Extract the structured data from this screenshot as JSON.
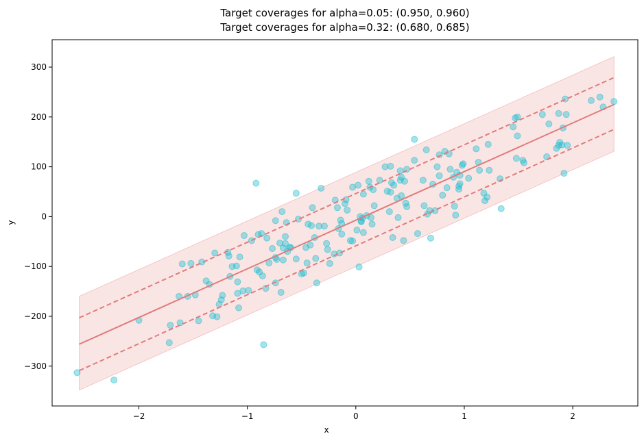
{
  "chart_data": {
    "type": "scatter",
    "title_lines": [
      "Target coverages for alpha=0.05: (0.950, 0.960)",
      "Target coverages for alpha=0.32: (0.680, 0.685)"
    ],
    "xlabel": "x",
    "ylabel": "y",
    "xlim": [
      -2.8,
      2.6
    ],
    "ylim": [
      -380,
      355
    ],
    "xticks": [
      -2,
      -1,
      0,
      1,
      2
    ],
    "xtick_labels": [
      "−2",
      "−1",
      "0",
      "1",
      "2"
    ],
    "yticks": [
      -300,
      -200,
      -100,
      0,
      100,
      200,
      300
    ],
    "ytick_labels": [
      "−300",
      "−200",
      "−100",
      "0",
      "100",
      "200",
      "300"
    ],
    "grid": false,
    "legend": "none",
    "colors": {
      "points": "#17becf",
      "prediction_line": "#e07b7b",
      "band_fill": "#f4c6c6"
    },
    "prediction": {
      "x": [
        -2.55,
        2.38
      ],
      "y": [
        -256,
        225
      ]
    },
    "interval_alpha_0_32": {
      "x": [
        -2.55,
        2.38
      ],
      "lower": [
        -309,
        175
      ],
      "upper": [
        -203,
        279
      ]
    },
    "interval_alpha_0_05": {
      "x": [
        -2.55,
        2.38
      ],
      "lower": [
        -348,
        131
      ],
      "upper": [
        -160,
        321
      ]
    },
    "points": [
      {
        "x": -2.57,
        "y": -313
      },
      {
        "x": -2.23,
        "y": -328
      },
      {
        "x": -2.0,
        "y": -208
      },
      {
        "x": -1.72,
        "y": -253
      },
      {
        "x": -1.71,
        "y": -218
      },
      {
        "x": -1.63,
        "y": -160
      },
      {
        "x": -1.62,
        "y": -213
      },
      {
        "x": -1.6,
        "y": -95
      },
      {
        "x": -1.55,
        "y": -160
      },
      {
        "x": -1.52,
        "y": -94
      },
      {
        "x": -1.48,
        "y": -157
      },
      {
        "x": -1.45,
        "y": -209
      },
      {
        "x": -1.42,
        "y": -91
      },
      {
        "x": -1.38,
        "y": -129
      },
      {
        "x": -1.35,
        "y": -136
      },
      {
        "x": -1.32,
        "y": -199
      },
      {
        "x": -1.3,
        "y": -73
      },
      {
        "x": -1.28,
        "y": -201
      },
      {
        "x": -1.26,
        "y": -176
      },
      {
        "x": -1.24,
        "y": -167
      },
      {
        "x": -1.23,
        "y": -158
      },
      {
        "x": -1.18,
        "y": -72
      },
      {
        "x": -1.17,
        "y": -79
      },
      {
        "x": -1.16,
        "y": -120
      },
      {
        "x": -1.14,
        "y": -100
      },
      {
        "x": -1.1,
        "y": -99
      },
      {
        "x": -1.09,
        "y": -154
      },
      {
        "x": -1.09,
        "y": -131
      },
      {
        "x": -1.08,
        "y": -183
      },
      {
        "x": -1.07,
        "y": -81
      },
      {
        "x": -1.04,
        "y": -149
      },
      {
        "x": -1.03,
        "y": -38
      },
      {
        "x": -0.99,
        "y": -148
      },
      {
        "x": -0.96,
        "y": -48
      },
      {
        "x": -0.92,
        "y": 67
      },
      {
        "x": -0.91,
        "y": -107
      },
      {
        "x": -0.9,
        "y": -36
      },
      {
        "x": -0.89,
        "y": -111
      },
      {
        "x": -0.87,
        "y": -34
      },
      {
        "x": -0.86,
        "y": -119
      },
      {
        "x": -0.85,
        "y": -257
      },
      {
        "x": -0.83,
        "y": -144
      },
      {
        "x": -0.82,
        "y": -43
      },
      {
        "x": -0.8,
        "y": -93
      },
      {
        "x": -0.77,
        "y": -64
      },
      {
        "x": -0.74,
        "y": -8
      },
      {
        "x": -0.74,
        "y": -133
      },
      {
        "x": -0.74,
        "y": -82
      },
      {
        "x": -0.73,
        "y": -86
      },
      {
        "x": -0.7,
        "y": -53
      },
      {
        "x": -0.69,
        "y": -152
      },
      {
        "x": -0.68,
        "y": 10
      },
      {
        "x": -0.67,
        "y": -63
      },
      {
        "x": -0.67,
        "y": -87
      },
      {
        "x": -0.65,
        "y": -40
      },
      {
        "x": -0.65,
        "y": -54
      },
      {
        "x": -0.64,
        "y": -12
      },
      {
        "x": -0.63,
        "y": -70
      },
      {
        "x": -0.61,
        "y": -62
      },
      {
        "x": -0.6,
        "y": -62
      },
      {
        "x": -0.55,
        "y": 47
      },
      {
        "x": -0.55,
        "y": -85
      },
      {
        "x": -0.53,
        "y": -5
      },
      {
        "x": -0.5,
        "y": -115
      },
      {
        "x": -0.48,
        "y": -113
      },
      {
        "x": -0.46,
        "y": -62
      },
      {
        "x": -0.45,
        "y": -93
      },
      {
        "x": -0.44,
        "y": -15
      },
      {
        "x": -0.42,
        "y": -57
      },
      {
        "x": -0.41,
        "y": -18
      },
      {
        "x": -0.4,
        "y": 18
      },
      {
        "x": -0.38,
        "y": -42
      },
      {
        "x": -0.37,
        "y": -84
      },
      {
        "x": -0.36,
        "y": -133
      },
      {
        "x": -0.34,
        "y": -19
      },
      {
        "x": -0.32,
        "y": 57
      },
      {
        "x": -0.29,
        "y": -19
      },
      {
        "x": -0.27,
        "y": -54
      },
      {
        "x": -0.26,
        "y": -66
      },
      {
        "x": -0.24,
        "y": -94
      },
      {
        "x": -0.2,
        "y": -75
      },
      {
        "x": -0.19,
        "y": 33
      },
      {
        "x": -0.17,
        "y": 18
      },
      {
        "x": -0.16,
        "y": -24
      },
      {
        "x": -0.15,
        "y": -73
      },
      {
        "x": -0.14,
        "y": -7
      },
      {
        "x": -0.13,
        "y": -14
      },
      {
        "x": -0.13,
        "y": -35
      },
      {
        "x": -0.1,
        "y": 26
      },
      {
        "x": -0.09,
        "y": 34
      },
      {
        "x": -0.08,
        "y": 13
      },
      {
        "x": -0.05,
        "y": -48
      },
      {
        "x": -0.03,
        "y": -49
      },
      {
        "x": -0.03,
        "y": 59
      },
      {
        "x": 0.01,
        "y": -27
      },
      {
        "x": 0.02,
        "y": 63
      },
      {
        "x": 0.03,
        "y": -101
      },
      {
        "x": 0.04,
        "y": 0
      },
      {
        "x": 0.05,
        "y": -9
      },
      {
        "x": 0.05,
        "y": -10
      },
      {
        "x": 0.06,
        "y": -3
      },
      {
        "x": 0.07,
        "y": 45
      },
      {
        "x": 0.07,
        "y": -32
      },
      {
        "x": 0.1,
        "y": 2
      },
      {
        "x": 0.12,
        "y": 71
      },
      {
        "x": 0.13,
        "y": 59
      },
      {
        "x": 0.14,
        "y": -2
      },
      {
        "x": 0.15,
        "y": -15
      },
      {
        "x": 0.16,
        "y": 54
      },
      {
        "x": 0.17,
        "y": 22
      },
      {
        "x": 0.22,
        "y": 73
      },
      {
        "x": 0.27,
        "y": 100
      },
      {
        "x": 0.29,
        "y": 51
      },
      {
        "x": 0.31,
        "y": 10
      },
      {
        "x": 0.32,
        "y": 49
      },
      {
        "x": 0.32,
        "y": 101
      },
      {
        "x": 0.33,
        "y": 68
      },
      {
        "x": 0.34,
        "y": -42
      },
      {
        "x": 0.35,
        "y": 63
      },
      {
        "x": 0.38,
        "y": 37
      },
      {
        "x": 0.39,
        "y": -2
      },
      {
        "x": 0.41,
        "y": 92
      },
      {
        "x": 0.41,
        "y": 73
      },
      {
        "x": 0.42,
        "y": 42
      },
      {
        "x": 0.42,
        "y": 79
      },
      {
        "x": 0.44,
        "y": -48
      },
      {
        "x": 0.45,
        "y": 71
      },
      {
        "x": 0.46,
        "y": 27
      },
      {
        "x": 0.47,
        "y": 20
      },
      {
        "x": 0.47,
        "y": 95
      },
      {
        "x": 0.54,
        "y": 113
      },
      {
        "x": 0.54,
        "y": 155
      },
      {
        "x": 0.57,
        "y": -34
      },
      {
        "x": 0.62,
        "y": 73
      },
      {
        "x": 0.63,
        "y": 22
      },
      {
        "x": 0.65,
        "y": 134
      },
      {
        "x": 0.66,
        "y": 5
      },
      {
        "x": 0.68,
        "y": 12
      },
      {
        "x": 0.69,
        "y": -43
      },
      {
        "x": 0.71,
        "y": 65
      },
      {
        "x": 0.73,
        "y": 12
      },
      {
        "x": 0.75,
        "y": 100
      },
      {
        "x": 0.77,
        "y": 124
      },
      {
        "x": 0.77,
        "y": 82
      },
      {
        "x": 0.8,
        "y": 43
      },
      {
        "x": 0.82,
        "y": 131
      },
      {
        "x": 0.84,
        "y": 58
      },
      {
        "x": 0.86,
        "y": 126
      },
      {
        "x": 0.87,
        "y": 95
      },
      {
        "x": 0.9,
        "y": 79
      },
      {
        "x": 0.91,
        "y": 21
      },
      {
        "x": 0.92,
        "y": 3
      },
      {
        "x": 0.93,
        "y": 89
      },
      {
        "x": 0.95,
        "y": 55
      },
      {
        "x": 0.95,
        "y": 61
      },
      {
        "x": 0.96,
        "y": 83
      },
      {
        "x": 0.96,
        "y": 66
      },
      {
        "x": 0.98,
        "y": 103
      },
      {
        "x": 0.99,
        "y": 106
      },
      {
        "x": 1.04,
        "y": 77
      },
      {
        "x": 1.11,
        "y": 136
      },
      {
        "x": 1.13,
        "y": 109
      },
      {
        "x": 1.14,
        "y": 93
      },
      {
        "x": 1.18,
        "y": 47
      },
      {
        "x": 1.19,
        "y": 32
      },
      {
        "x": 1.21,
        "y": 39
      },
      {
        "x": 1.22,
        "y": 145
      },
      {
        "x": 1.23,
        "y": 93
      },
      {
        "x": 1.33,
        "y": 76
      },
      {
        "x": 1.34,
        "y": 16
      },
      {
        "x": 1.45,
        "y": 180
      },
      {
        "x": 1.47,
        "y": 198
      },
      {
        "x": 1.48,
        "y": 117
      },
      {
        "x": 1.49,
        "y": 200
      },
      {
        "x": 1.49,
        "y": 162
      },
      {
        "x": 1.54,
        "y": 113
      },
      {
        "x": 1.55,
        "y": 108
      },
      {
        "x": 1.72,
        "y": 205
      },
      {
        "x": 1.76,
        "y": 120
      },
      {
        "x": 1.78,
        "y": 186
      },
      {
        "x": 1.85,
        "y": 137
      },
      {
        "x": 1.87,
        "y": 143
      },
      {
        "x": 1.87,
        "y": 207
      },
      {
        "x": 1.88,
        "y": 149
      },
      {
        "x": 1.9,
        "y": 144
      },
      {
        "x": 1.91,
        "y": 178
      },
      {
        "x": 1.92,
        "y": 87
      },
      {
        "x": 1.93,
        "y": 236
      },
      {
        "x": 1.94,
        "y": 205
      },
      {
        "x": 1.95,
        "y": 143
      },
      {
        "x": 2.17,
        "y": 233
      },
      {
        "x": 2.25,
        "y": 240
      },
      {
        "x": 2.28,
        "y": 220
      },
      {
        "x": 2.38,
        "y": 231
      }
    ]
  }
}
